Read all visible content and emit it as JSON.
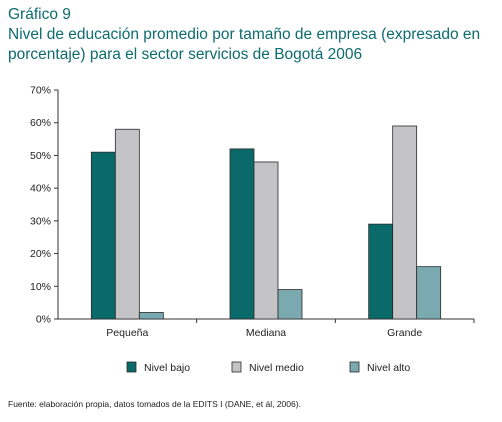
{
  "header": {
    "label": "Gráfico 9",
    "title": "Nivel de educación promedio por tamaño de empresa (expresado en porcentaje) para el sector servicios de Bogotá 2006"
  },
  "source": "Fuente: elaboración propia, datos tomados de la EDITS I (DANE, et ál, 2006).",
  "chart_data": {
    "type": "bar",
    "categories": [
      "Pequeña",
      "Mediana",
      "Grande"
    ],
    "series": [
      {
        "name": "Nivel bajo",
        "values": [
          51,
          52,
          29
        ],
        "color": "#0a6a6a"
      },
      {
        "name": "Nivel medio",
        "values": [
          58,
          48,
          59
        ],
        "color": "#c4c4c6"
      },
      {
        "name": "Nivel alto",
        "values": [
          2,
          9,
          16
        ],
        "color": "#7aa9b0"
      }
    ],
    "ylim": [
      0,
      70
    ],
    "yticks": [
      "0%",
      "10%",
      "20%",
      "30%",
      "40%",
      "50%",
      "60%",
      "70%"
    ],
    "legend": "bottom",
    "grid": false
  }
}
